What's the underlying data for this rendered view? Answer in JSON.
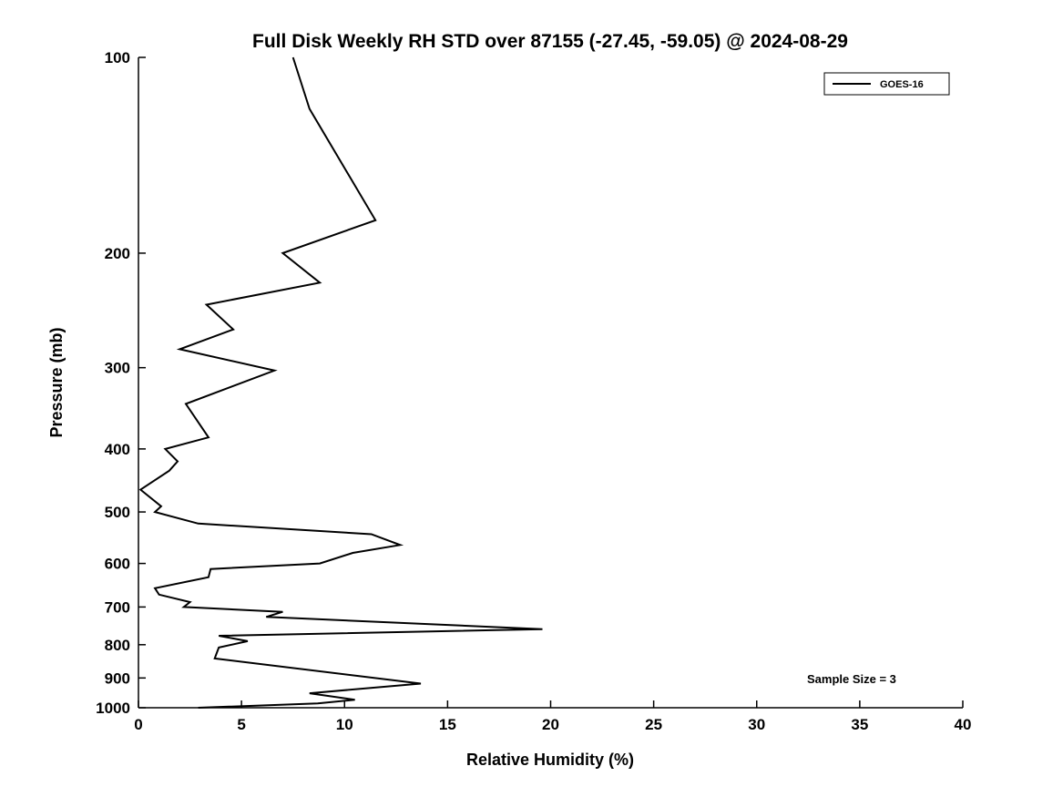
{
  "title": "Full Disk Weekly RH STD over 87155 (-27.45, -59.05) @ 2024-08-29",
  "xlabel": "Relative Humidity (%)",
  "ylabel": "Pressure (mb)",
  "annotation": "Sample Size = 3",
  "legend": {
    "label": "GOES-16",
    "line_color": "#000000",
    "position": "top-right"
  },
  "chart_data": {
    "type": "line",
    "title": "Full Disk Weekly RH STD over 87155 (-27.45, -59.05) @ 2024-08-29",
    "xlabel": "Relative Humidity (%)",
    "ylabel": "Pressure (mb)",
    "xlim": [
      0,
      40
    ],
    "ylim": [
      100,
      1000
    ],
    "y_scale": "log",
    "y_inverted": true,
    "grid": false,
    "x_ticks": [
      0,
      5,
      10,
      15,
      20,
      25,
      30,
      35,
      40
    ],
    "y_ticks": [
      100,
      200,
      300,
      400,
      500,
      600,
      700,
      800,
      900,
      1000
    ],
    "annotation": "Sample Size = 3",
    "legend_position": "top-right",
    "series": [
      {
        "name": "GOES-16",
        "color": "#000000",
        "points_format": [
          "pressure_mb",
          "rh_std_percent"
        ],
        "points": [
          [
            100,
            7.5
          ],
          [
            120,
            8.3
          ],
          [
            178,
            11.5
          ],
          [
            200,
            7.0
          ],
          [
            222,
            8.8
          ],
          [
            240,
            3.3
          ],
          [
            262,
            4.6
          ],
          [
            281,
            2.0
          ],
          [
            303,
            6.6
          ],
          [
            341,
            2.3
          ],
          [
            384,
            3.4
          ],
          [
            400,
            1.3
          ],
          [
            418,
            1.9
          ],
          [
            432,
            1.5
          ],
          [
            462,
            0.1
          ],
          [
            490,
            1.1
          ],
          [
            500,
            0.8
          ],
          [
            521,
            2.9
          ],
          [
            541,
            11.3
          ],
          [
            562,
            12.7
          ],
          [
            578,
            10.4
          ],
          [
            600,
            8.8
          ],
          [
            612,
            3.5
          ],
          [
            630,
            3.4
          ],
          [
            655,
            0.8
          ],
          [
            670,
            1.0
          ],
          [
            688,
            2.5
          ],
          [
            700,
            2.2
          ],
          [
            712,
            7.0
          ],
          [
            725,
            6.2
          ],
          [
            757,
            19.6
          ],
          [
            775,
            3.9
          ],
          [
            790,
            5.3
          ],
          [
            808,
            3.9
          ],
          [
            840,
            3.7
          ],
          [
            918,
            13.7
          ],
          [
            950,
            8.3
          ],
          [
            972,
            10.5
          ],
          [
            985,
            8.7
          ],
          [
            1000,
            2.9
          ]
        ]
      }
    ]
  }
}
